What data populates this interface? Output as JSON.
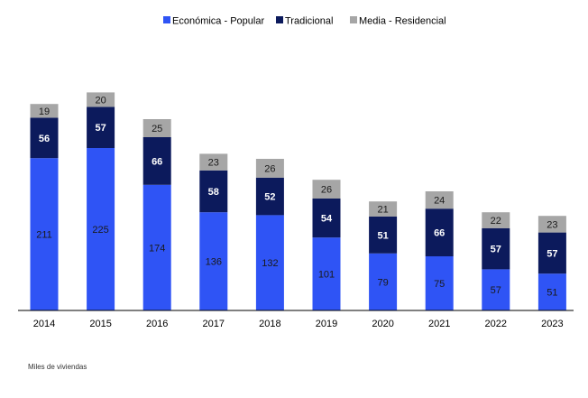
{
  "chart_data": {
    "type": "bar",
    "stacked": true,
    "categories": [
      "2014",
      "2015",
      "2016",
      "2017",
      "2018",
      "2019",
      "2020",
      "2021",
      "2022",
      "2023"
    ],
    "series": [
      {
        "name": "Económica - Popular",
        "color": "#2f54f5",
        "label_color": "#1a1a1a",
        "values": [
          211,
          225,
          174,
          136,
          132,
          101,
          79,
          75,
          57,
          51
        ]
      },
      {
        "name": "Tradicional",
        "color": "#0c1a5c",
        "label_color": "#ffffff",
        "values": [
          56,
          57,
          66,
          58,
          52,
          54,
          51,
          66,
          57,
          57
        ]
      },
      {
        "name": "Media - Residencial",
        "color": "#a6a6a6",
        "label_color": "#1a1a1a",
        "values": [
          19,
          20,
          25,
          23,
          26,
          26,
          21,
          24,
          22,
          23
        ]
      }
    ],
    "legend_position": "top",
    "grid": false,
    "ylim": [
      0,
      300
    ]
  },
  "footnote": "Miles de viviendas"
}
